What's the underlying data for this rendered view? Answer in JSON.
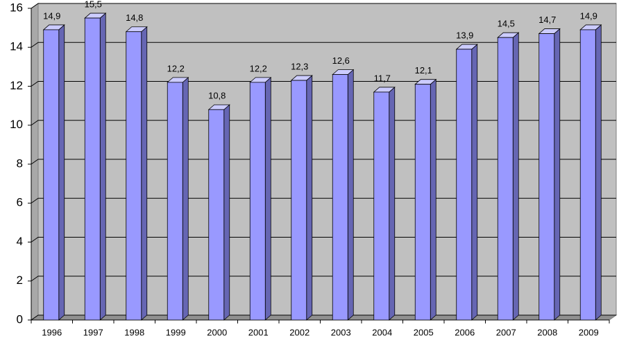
{
  "chart_data": {
    "type": "bar3d",
    "categories": [
      "1996",
      "1997",
      "1998",
      "1999",
      "2000",
      "2001",
      "2002",
      "2003",
      "2004",
      "2005",
      "2006",
      "2007",
      "2008",
      "2009"
    ],
    "values": [
      14.9,
      15.5,
      14.8,
      12.2,
      10.8,
      12.2,
      12.3,
      12.6,
      11.7,
      12.1,
      13.9,
      14.5,
      14.7,
      14.9
    ],
    "value_labels": [
      "14,9",
      "15,5",
      "14,8",
      "12,2",
      "10,8",
      "12,2",
      "12,3",
      "12,6",
      "11,7",
      "12,1",
      "13,9",
      "14,5",
      "14,7",
      "14,9"
    ],
    "color": "#9999ff",
    "ylim": [
      0,
      16
    ],
    "yticks": [
      0,
      2,
      4,
      6,
      8,
      10,
      12,
      14,
      16
    ],
    "grid": true
  }
}
